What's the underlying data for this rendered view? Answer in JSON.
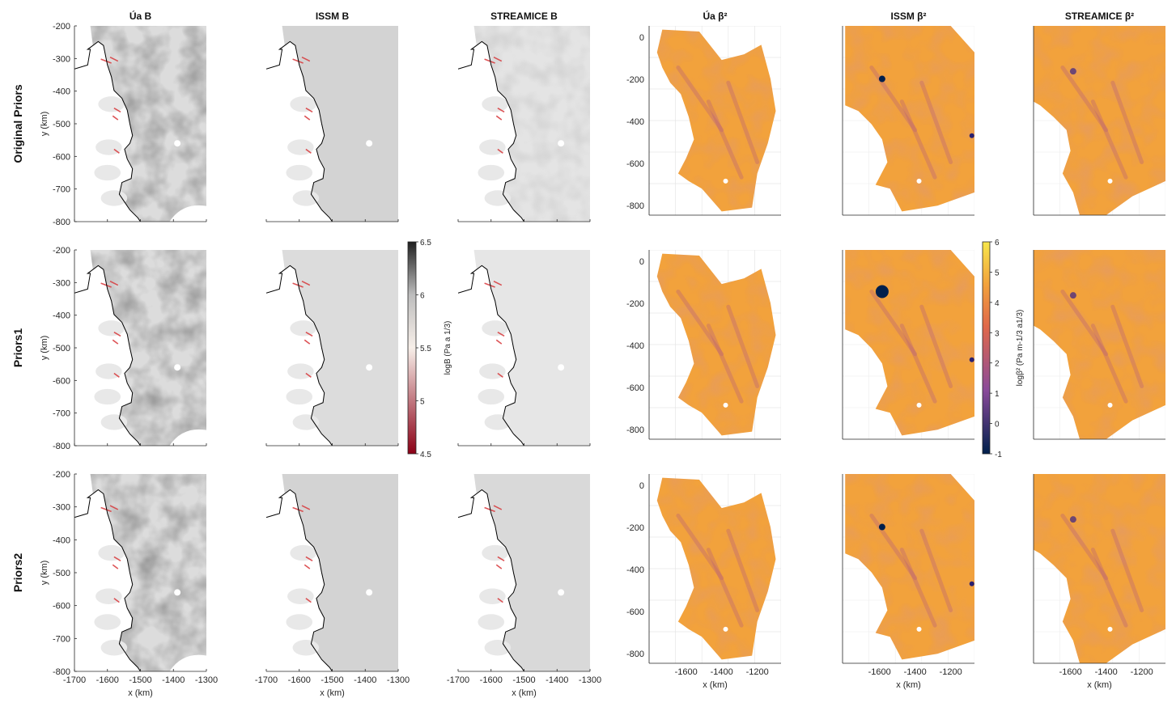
{
  "figure": {
    "column_titles": [
      "Úa B",
      "ISSM B",
      "STREAMICE B",
      "Úa β²",
      "ISSM β²",
      "STREAMICE β²"
    ],
    "row_titles": [
      "Original Priors",
      "Priors1",
      "Priors2"
    ],
    "colors": {
      "b_low": "#8b0016",
      "b_mid": "#f7efe9",
      "b_high": "#1f1f1f",
      "beta_low": "#00204c",
      "beta_mid": "#8a4a9a",
      "beta_high": "#f7e64a",
      "beta_background": "#f2a23c",
      "grounding_line": "#000000"
    }
  },
  "chart_data": [
    {
      "type": "heatmap",
      "panel_group": "B (left three columns)",
      "xlabel": "x (km)",
      "ylabel": "y (km)",
      "xlim": [
        -1700,
        -1300
      ],
      "ylim": [
        -800,
        -200
      ],
      "xticks": [
        "-1700",
        "-1600",
        "-1500",
        "-1400",
        "-1300"
      ],
      "yticks": [
        "-200",
        "-300",
        "-400",
        "-500",
        "-600",
        "-700",
        "-800"
      ],
      "colorbar": {
        "label": "logB (Pa a 1/3)",
        "range": [
          4.5,
          6.5
        ],
        "ticks": [
          "6.5",
          "6",
          "5.5",
          "5",
          "4.5"
        ]
      }
    },
    {
      "type": "heatmap",
      "panel_group": "β² (right three columns)",
      "xlabel": "x (km)",
      "ylabel": "",
      "xticks": [
        "-1600",
        "-1400",
        "-1200"
      ],
      "yticks": [
        "0",
        "-200",
        "-400",
        "-600",
        "-800"
      ],
      "colorbar": {
        "label": "logβ² (Pa m-1/3 a1/3)",
        "range": [
          -1,
          6
        ],
        "ticks": [
          "6",
          "5",
          "4",
          "3",
          "2",
          "1",
          "0",
          "-1"
        ]
      }
    }
  ]
}
